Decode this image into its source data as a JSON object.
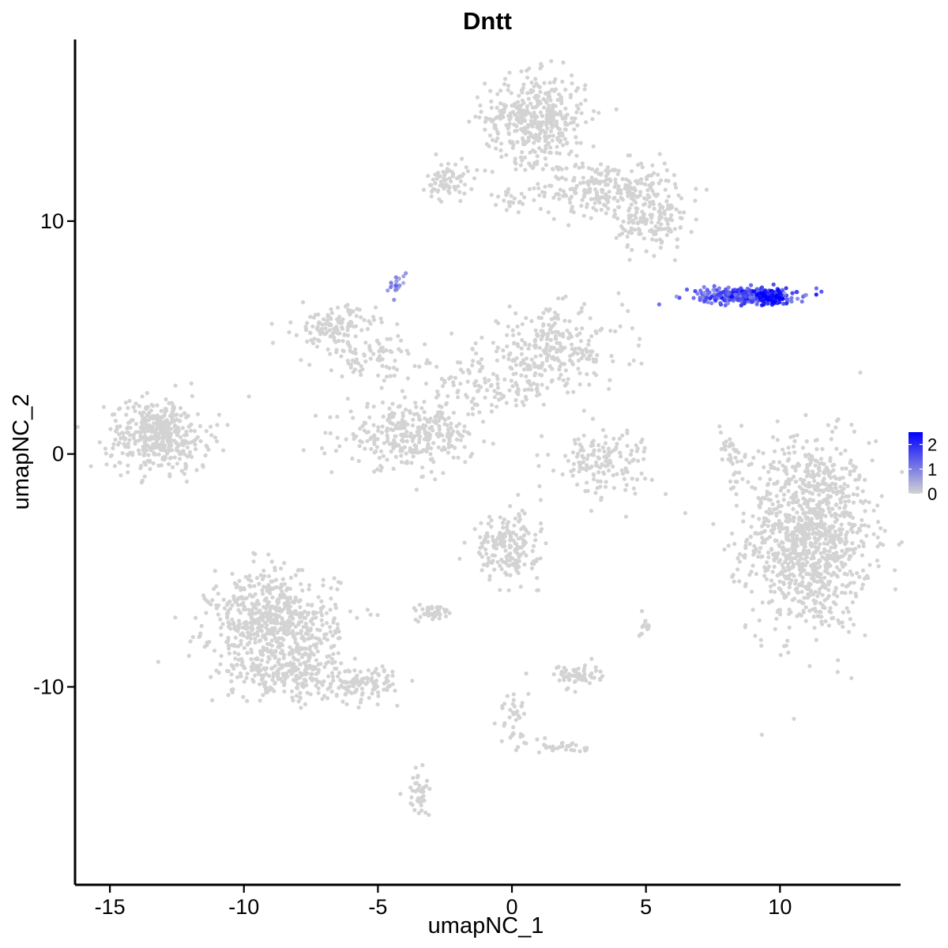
{
  "chart_data": {
    "type": "scatter",
    "title": "Dntt",
    "xlabel": "umapNC_1",
    "ylabel": "umapNC_2",
    "xlim": [
      -16.3,
      14.5
    ],
    "ylim": [
      -18.5,
      17.8
    ],
    "x_ticks": [
      {
        "value": -15,
        "label": "-15"
      },
      {
        "value": -10,
        "label": "-10"
      },
      {
        "value": -5,
        "label": "-5"
      },
      {
        "value": 0,
        "label": "0"
      },
      {
        "value": 5,
        "label": "5"
      },
      {
        "value": 10,
        "label": "10"
      }
    ],
    "y_ticks": [
      {
        "value": 10,
        "label": "10"
      },
      {
        "value": 0,
        "label": "0"
      },
      {
        "value": -10,
        "label": "-10"
      }
    ],
    "grid": false,
    "color_scale": {
      "low_color": "#d3d3d3",
      "high_color": "#0000ff",
      "min": 0,
      "max": 2.5,
      "ticks": [
        {
          "value": 2,
          "label": "2"
        },
        {
          "value": 1,
          "label": "1"
        },
        {
          "value": 0,
          "label": "0"
        }
      ],
      "legend_position": "right"
    },
    "clusters": [
      {
        "cx": 11.1,
        "cy": -3.5,
        "sx": 1.35,
        "sy": 2.4,
        "n": 1100,
        "expr": 0
      },
      {
        "cx": 0.9,
        "cy": 14.4,
        "sx": 1.1,
        "sy": 1.1,
        "n": 420,
        "expr": 0
      },
      {
        "cx": 3.6,
        "cy": 11.4,
        "sx": 1.5,
        "sy": 0.7,
        "n": 260,
        "expr": 0
      },
      {
        "cx": 5.2,
        "cy": 9.9,
        "sx": 0.8,
        "sy": 0.7,
        "n": 130,
        "expr": 0
      },
      {
        "cx": -2.4,
        "cy": 11.7,
        "sx": 0.45,
        "sy": 0.5,
        "n": 70,
        "expr": 0
      },
      {
        "cx": 0.2,
        "cy": 11.0,
        "sx": 0.6,
        "sy": 0.25,
        "n": 25,
        "expr": 0
      },
      {
        "cx": -13.2,
        "cy": 0.8,
        "sx": 1.1,
        "sy": 0.9,
        "n": 420,
        "expr": 0
      },
      {
        "cx": -6.6,
        "cy": 5.5,
        "sx": 0.9,
        "sy": 0.5,
        "n": 120,
        "expr": 0
      },
      {
        "cx": -5.3,
        "cy": 4.2,
        "sx": 1.2,
        "sy": 0.5,
        "n": 80,
        "expr": 0
      },
      {
        "cx": 1.5,
        "cy": 4.5,
        "sx": 1.6,
        "sy": 1.0,
        "n": 260,
        "expr": 0
      },
      {
        "cx": -1.0,
        "cy": 2.8,
        "sx": 1.5,
        "sy": 0.7,
        "n": 120,
        "expr": 0
      },
      {
        "cx": -3.8,
        "cy": 0.8,
        "sx": 1.4,
        "sy": 0.8,
        "n": 300,
        "expr": 0
      },
      {
        "cx": 3.3,
        "cy": -0.3,
        "sx": 1.1,
        "sy": 0.8,
        "n": 150,
        "expr": 0
      },
      {
        "cx": 8.2,
        "cy": 0.2,
        "sx": 0.3,
        "sy": 0.7,
        "n": 35,
        "expr": 0
      },
      {
        "cx": -8.9,
        "cy": -7.3,
        "sx": 1.4,
        "sy": 1.3,
        "n": 620,
        "expr": 0
      },
      {
        "cx": -8.3,
        "cy": -9.4,
        "sx": 1.3,
        "sy": 0.7,
        "n": 200,
        "expr": 0
      },
      {
        "cx": -5.5,
        "cy": -9.8,
        "sx": 0.9,
        "sy": 0.4,
        "n": 110,
        "expr": 0
      },
      {
        "cx": -0.2,
        "cy": -4.0,
        "sx": 0.7,
        "sy": 0.8,
        "n": 190,
        "expr": 0
      },
      {
        "cx": -2.9,
        "cy": -6.8,
        "sx": 0.4,
        "sy": 0.2,
        "n": 45,
        "expr": 0
      },
      {
        "cx": 2.4,
        "cy": -9.5,
        "sx": 0.5,
        "sy": 0.3,
        "n": 55,
        "expr": 0
      },
      {
        "cx": -3.5,
        "cy": -14.6,
        "sx": 0.25,
        "sy": 0.6,
        "n": 40,
        "expr": 0
      },
      {
        "cx": 0.1,
        "cy": -11.4,
        "sx": 0.3,
        "sy": 0.9,
        "n": 40,
        "expr": 0
      },
      {
        "cx": 2.0,
        "cy": -12.6,
        "sx": 0.5,
        "sy": 0.2,
        "n": 30,
        "expr": 0
      },
      {
        "cx": 5.0,
        "cy": -7.3,
        "sx": 0.12,
        "sy": 0.3,
        "n": 14,
        "expr": 0
      },
      {
        "cx": -4.3,
        "cy": 7.3,
        "sx": 0.2,
        "sy": 0.25,
        "n": 22,
        "expr": 0.9
      },
      {
        "cx": 8.8,
        "cy": 6.8,
        "sx": 1.1,
        "sy": 0.2,
        "n": 320,
        "expr": 1.6
      },
      {
        "cx": 9.6,
        "cy": 6.75,
        "sx": 0.35,
        "sy": 0.2,
        "n": 90,
        "expr": 2.4
      }
    ]
  }
}
